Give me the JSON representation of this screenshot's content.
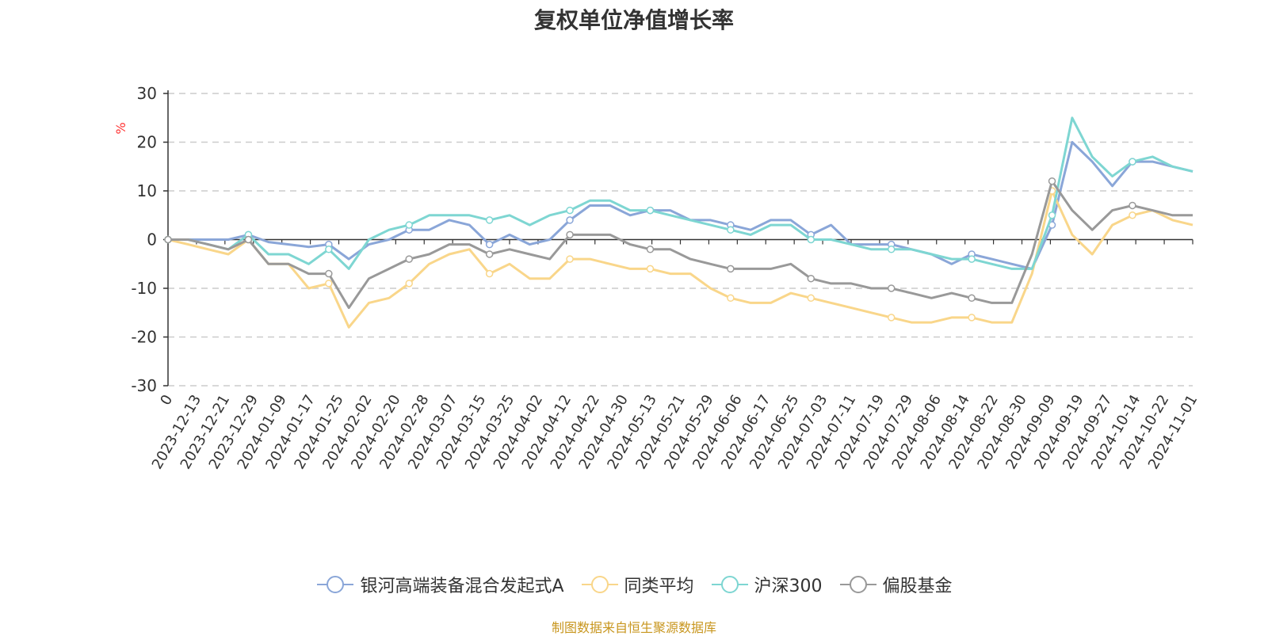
{
  "chart_data": {
    "type": "line",
    "title": "复权单位净值增长率",
    "ylabel": "%",
    "xlabel": "",
    "ylim": [
      -30,
      30
    ],
    "yticks": [
      30,
      20,
      10,
      0,
      -10,
      -20,
      -30
    ],
    "xtick_labels": [
      "0",
      "2023-12-13",
      "2023-12-21",
      "2023-12-29",
      "2024-01-09",
      "2024-01-17",
      "2024-01-25",
      "2024-02-02",
      "2024-02-20",
      "2024-02-28",
      "2024-03-07",
      "2024-03-15",
      "2024-03-25",
      "2024-04-02",
      "2024-04-12",
      "2024-04-22",
      "2024-04-30",
      "2024-05-13",
      "2024-05-21",
      "2024-05-29",
      "2024-06-06",
      "2024-06-17",
      "2024-06-25",
      "2024-07-03",
      "2024-07-11",
      "2024-07-19",
      "2024-07-29",
      "2024-08-06",
      "2024-08-14",
      "2024-08-22",
      "2024-08-30",
      "2024-09-09",
      "2024-09-19",
      "2024-09-27",
      "2024-10-14",
      "2024-10-22",
      "2024-11-01"
    ],
    "grid": true,
    "legend_position": "bottom-center",
    "series": [
      {
        "name": "银河高端装备混合发起式A",
        "color": "#8aa6d8",
        "values": [
          0,
          0,
          0,
          0,
          1,
          -0.5,
          -1,
          -1.5,
          -1,
          -4,
          -1,
          0,
          2,
          2,
          4,
          3,
          -1,
          1,
          -1,
          0,
          4,
          7,
          7,
          5,
          6,
          6,
          4,
          4,
          3,
          2,
          4,
          4,
          1,
          3,
          -1,
          -1,
          -1,
          -2,
          -3,
          -5,
          -3,
          -4,
          -5,
          -6,
          3,
          20,
          16,
          11,
          16,
          16,
          15,
          14
        ]
      },
      {
        "name": "同类平均",
        "color": "#f9d68a",
        "values": [
          0,
          -1,
          -2,
          -3,
          0,
          -5,
          -5,
          -10,
          -9,
          -18,
          -13,
          -12,
          -9,
          -5,
          -3,
          -2,
          -7,
          -5,
          -8,
          -8,
          -4,
          -4,
          -5,
          -6,
          -6,
          -7,
          -7,
          -10,
          -12,
          -13,
          -13,
          -11,
          -12,
          -13,
          -14,
          -15,
          -16,
          -17,
          -17,
          -16,
          -16,
          -17,
          -17,
          -7,
          10,
          1,
          -3,
          3,
          5,
          6,
          4,
          3
        ]
      },
      {
        "name": "沪深300",
        "color": "#7ed6d2",
        "values": [
          0,
          0,
          -1,
          -2,
          1,
          -3,
          -3,
          -5,
          -2,
          -6,
          0,
          2,
          3,
          5,
          5,
          5,
          4,
          5,
          3,
          5,
          6,
          8,
          8,
          6,
          6,
          5,
          4,
          3,
          2,
          1,
          3,
          3,
          0,
          0,
          -1,
          -2,
          -2,
          -2,
          -3,
          -4,
          -4,
          -5,
          -6,
          -6,
          5,
          25,
          17,
          13,
          16,
          17,
          15,
          14
        ]
      },
      {
        "name": "偏股基金",
        "color": "#999999",
        "values": [
          0,
          0,
          -1,
          -2,
          0,
          -5,
          -5,
          -7,
          -7,
          -14,
          -8,
          -6,
          -4,
          -3,
          -1,
          -1,
          -3,
          -2,
          -3,
          -4,
          1,
          1,
          1,
          -1,
          -2,
          -2,
          -4,
          -5,
          -6,
          -6,
          -6,
          -5,
          -8,
          -9,
          -9,
          -10,
          -10,
          -11,
          -12,
          -11,
          -12,
          -13,
          -13,
          -3,
          12,
          6,
          2,
          6,
          7,
          6,
          5,
          5
        ]
      }
    ]
  },
  "footer": {
    "source": "制图数据来自恒生聚源数据库"
  }
}
